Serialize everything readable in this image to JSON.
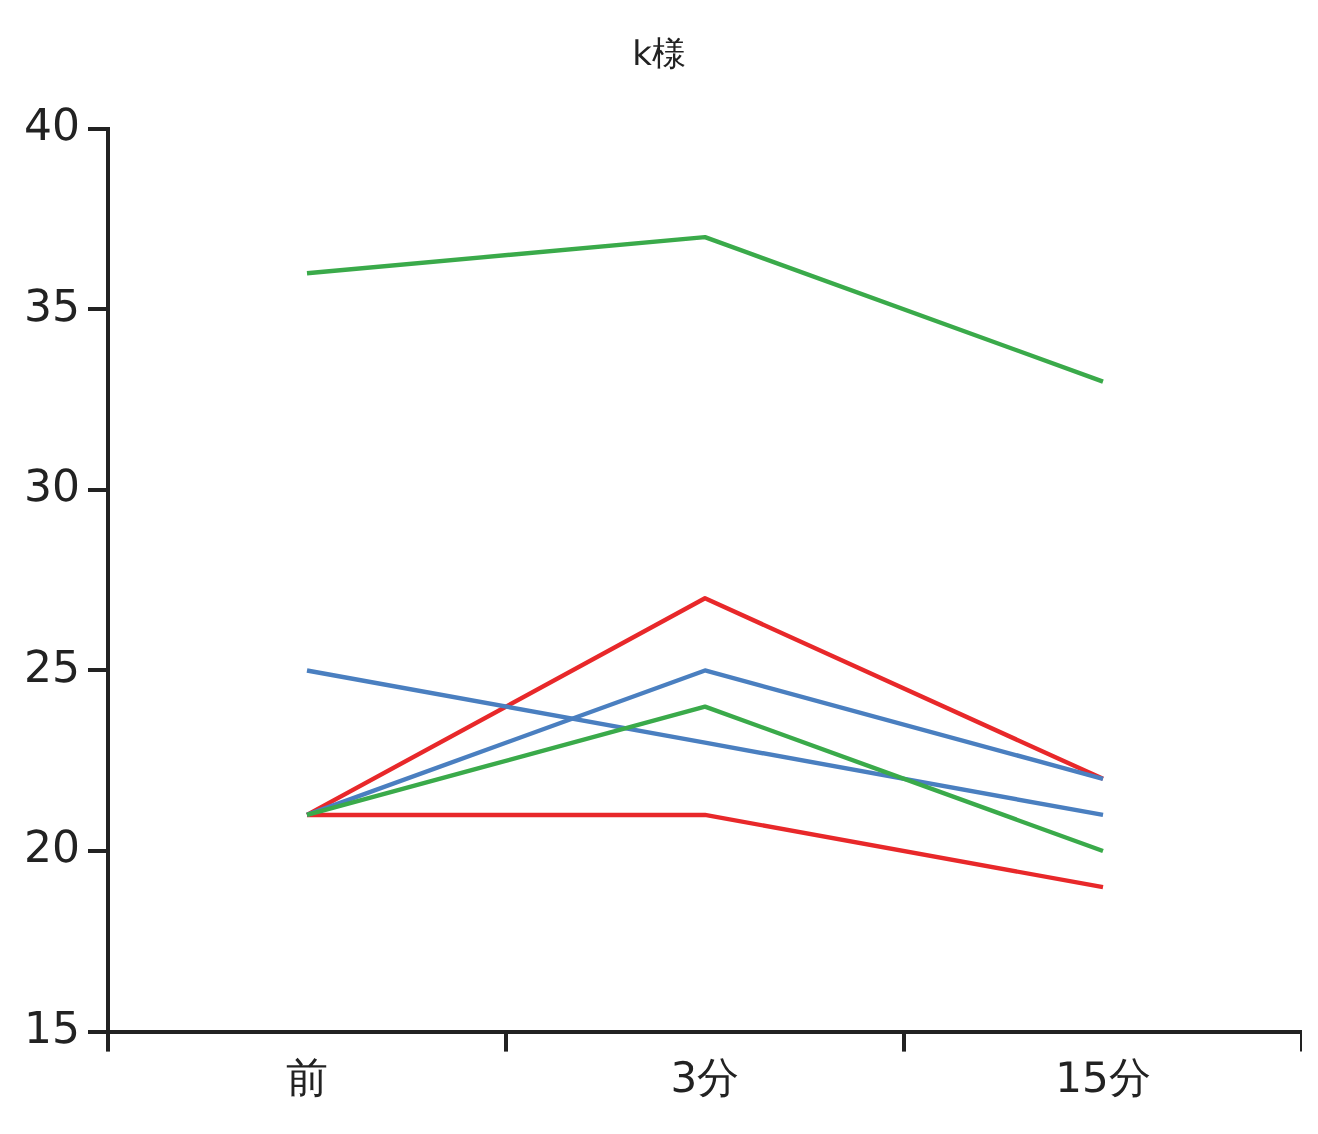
{
  "chart_data": {
    "type": "line",
    "title": "k様",
    "categories": [
      "前",
      "3分",
      "15分"
    ],
    "series": [
      {
        "color": "#3aaa4a",
        "values": [
          36,
          37,
          33
        ]
      },
      {
        "color": "#3aaa4a",
        "values": [
          21,
          24,
          20
        ]
      },
      {
        "color": "#4a7fc0",
        "values": [
          25,
          23,
          21
        ]
      },
      {
        "color": "#4a7fc0",
        "values": [
          21,
          25,
          22
        ]
      },
      {
        "color": "#e8282a",
        "values": [
          21,
          27,
          22
        ]
      },
      {
        "color": "#e8282a",
        "values": [
          21,
          21,
          19
        ]
      }
    ],
    "ylim": [
      15,
      40
    ],
    "yticks": [
      15,
      20,
      25,
      30,
      35,
      40
    ],
    "grid": false,
    "legend": false,
    "marker": "none",
    "line_style": "solid"
  }
}
